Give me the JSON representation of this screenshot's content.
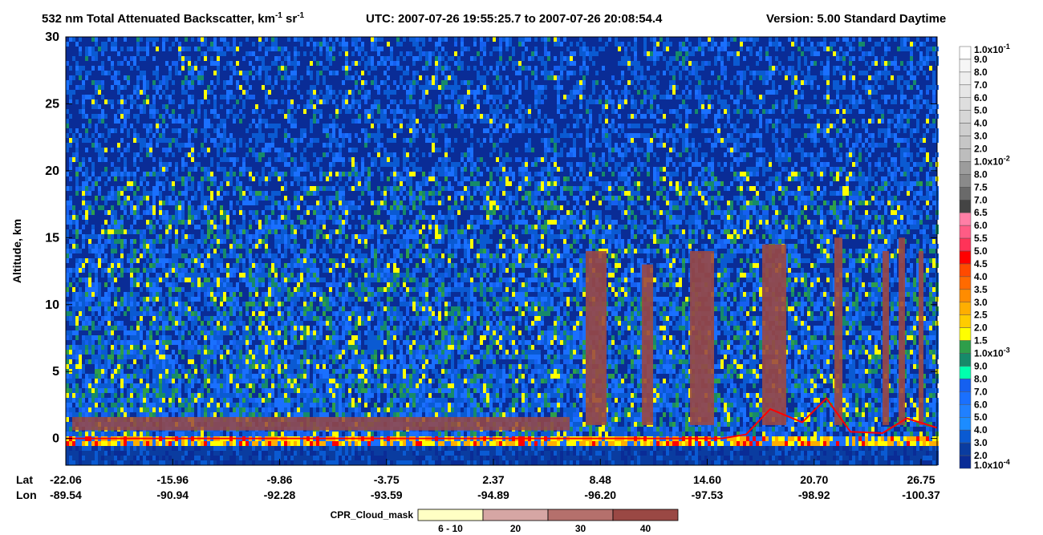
{
  "chart_data": {
    "type": "curtain",
    "title": {
      "main": "532 nm Total Attenuated Backscatter, km",
      "sup1": "-1",
      "mid": " sr",
      "sup2": "-1",
      "utc": "UTC:  2007-07-26 19:55:25.7  to  2007-07-26 20:08:54.4",
      "version": "Version: 5.00  Standard  Daytime"
    },
    "ylabel": "Altitude, km",
    "ylim": [
      -2,
      30
    ],
    "yticks": [
      0,
      5,
      10,
      15,
      20,
      25,
      30
    ],
    "x_axis": {
      "lat_name": "Lat",
      "lon_name": "Lon",
      "lat": [
        "-22.06",
        "-15.96",
        "-9.86",
        "-3.75",
        "2.37",
        "8.48",
        "14.60",
        "20.70",
        "26.75"
      ],
      "lon": [
        "-89.54",
        "-90.94",
        "-92.28",
        "-93.59",
        "-94.89",
        "-96.20",
        "-97.53",
        "-98.92",
        "-100.37"
      ]
    },
    "colorbar": {
      "labels": [
        {
          "text": "1.0x10",
          "exp": "-1"
        },
        {
          "text": "9.0"
        },
        {
          "text": "8.0"
        },
        {
          "text": "7.0"
        },
        {
          "text": "6.0"
        },
        {
          "text": "5.0"
        },
        {
          "text": "4.0"
        },
        {
          "text": "3.0"
        },
        {
          "text": "2.0"
        },
        {
          "text": "1.0x10",
          "exp": "-2"
        },
        {
          "text": "8.0"
        },
        {
          "text": "7.5"
        },
        {
          "text": "7.0"
        },
        {
          "text": "6.5"
        },
        {
          "text": "6.0"
        },
        {
          "text": "5.5"
        },
        {
          "text": "5.0"
        },
        {
          "text": "4.5"
        },
        {
          "text": "4.0"
        },
        {
          "text": "3.5"
        },
        {
          "text": "3.0"
        },
        {
          "text": "2.5"
        },
        {
          "text": "2.0"
        },
        {
          "text": "1.5"
        },
        {
          "text": "1.0x10",
          "exp": "-3"
        },
        {
          "text": "9.0"
        },
        {
          "text": "8.0"
        },
        {
          "text": "7.0"
        },
        {
          "text": "6.0"
        },
        {
          "text": "5.0"
        },
        {
          "text": "4.0"
        },
        {
          "text": "3.0"
        },
        {
          "text": "2.0"
        },
        {
          "text": "1.0x10",
          "exp": "-4"
        }
      ],
      "colors": [
        "#ffffff",
        "#f6f6f6",
        "#eeeeee",
        "#e6e6e6",
        "#dedede",
        "#d6d6d6",
        "#cecece",
        "#c6c6c6",
        "#bdbdbd",
        "#9c9c9c",
        "#8a8a8a",
        "#6a6a6a",
        "#444444",
        "#ff7fa6",
        "#ff5c85",
        "#ff3358",
        "#ff0000",
        "#ff4a00",
        "#ff6a00",
        "#ff8c00",
        "#ffae00",
        "#ffcc00",
        "#ffff00",
        "#2e9e4a",
        "#168a6a",
        "#00ffae",
        "#1560f0",
        "#1a70ff",
        "#2080ff",
        "#1c8cff",
        "#0a5ad2",
        "#0a3ca0",
        "#0a2c96"
      ]
    },
    "cpr_legend": {
      "title": "CPR_Cloud_mask",
      "labels": [
        "6 - 10",
        "20",
        "30",
        "40"
      ],
      "colors": [
        "#ffffc4",
        "#d6a6a4",
        "#b5706c",
        "#9a4844"
      ]
    }
  }
}
